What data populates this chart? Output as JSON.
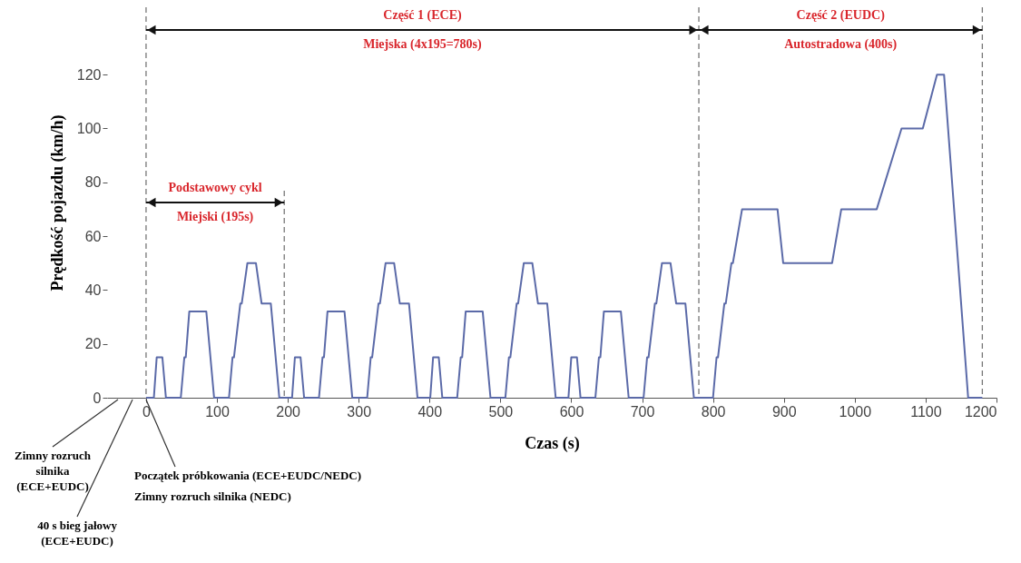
{
  "chart_data": {
    "type": "line",
    "xlabel": "Czas (s)",
    "ylabel": "Prędkość pojazdu (km/h)",
    "x": [
      0,
      11,
      15,
      23,
      28,
      49,
      54,
      56,
      61,
      85,
      96,
      117,
      122,
      124,
      133,
      135,
      143,
      155,
      163,
      176,
      188,
      195,
      206,
      210,
      218,
      223,
      244,
      249,
      251,
      256,
      280,
      291,
      312,
      317,
      319,
      328,
      330,
      338,
      350,
      358,
      371,
      383,
      390,
      401,
      405,
      413,
      418,
      439,
      444,
      446,
      451,
      475,
      486,
      507,
      512,
      514,
      523,
      525,
      533,
      545,
      553,
      566,
      578,
      585,
      596,
      600,
      608,
      613,
      634,
      639,
      641,
      646,
      670,
      681,
      702,
      707,
      709,
      718,
      720,
      728,
      740,
      748,
      761,
      773,
      780,
      800,
      805,
      807,
      816,
      818,
      826,
      828,
      841,
      891,
      899,
      968,
      981,
      1031,
      1066,
      1096,
      1116,
      1126,
      1160,
      1180
    ],
    "series": [
      {
        "color": "#5b6aa8",
        "values": [
          0,
          0,
          15,
          15,
          0,
          0,
          15,
          15,
          32,
          32,
          0,
          0,
          15,
          15,
          35,
          35,
          50,
          50,
          35,
          35,
          0,
          0,
          0,
          15,
          15,
          0,
          0,
          15,
          15,
          32,
          32,
          0,
          0,
          15,
          15,
          35,
          35,
          50,
          50,
          35,
          35,
          0,
          0,
          0,
          15,
          15,
          0,
          0,
          15,
          15,
          32,
          32,
          0,
          0,
          15,
          15,
          35,
          35,
          50,
          50,
          35,
          35,
          0,
          0,
          0,
          15,
          15,
          0,
          0,
          15,
          15,
          32,
          32,
          0,
          0,
          15,
          15,
          35,
          35,
          50,
          50,
          35,
          35,
          0,
          0,
          0,
          15,
          15,
          35,
          35,
          50,
          50,
          70,
          70,
          50,
          50,
          70,
          70,
          100,
          100,
          120,
          120,
          0,
          0
        ]
      }
    ],
    "xlim": [
      -55,
      1200
    ],
    "xticks": [
      0,
      100,
      200,
      300,
      400,
      500,
      600,
      700,
      800,
      900,
      1000,
      1100,
      1200
    ],
    "ylim": [
      0,
      145
    ],
    "yticks": [
      0,
      20,
      40,
      60,
      80,
      100,
      120
    ],
    "ref_lines": [
      {
        "axis": "x",
        "value": 0,
        "color": "#777777",
        "line_style": "dashed"
      },
      {
        "axis": "x",
        "value": 195,
        "color": "#777777",
        "line_style": "dashed"
      },
      {
        "axis": "x",
        "value": 780,
        "color": "#777777",
        "line_style": "dashed"
      },
      {
        "axis": "x",
        "value": 1180,
        "color": "#777777",
        "line_style": "dashed"
      }
    ],
    "annotations": [
      "Część 1 (ECE)",
      "Miejska (4x195=780s)",
      "Część 2 (EUDC)",
      "Autostradowa (400s)",
      "Podstawowy cykl",
      "Miejski (195s)",
      "Zimny rozruch silnika (ECE+EUDC)",
      "40 s bieg jałowy (ECE+EUDC)",
      "Początek próbkowania (ECE+EUDC/NEDC)",
      "Zimny rozruch silnika (NEDC)"
    ],
    "grid": false,
    "marker": "none",
    "line_style": "solid"
  }
}
